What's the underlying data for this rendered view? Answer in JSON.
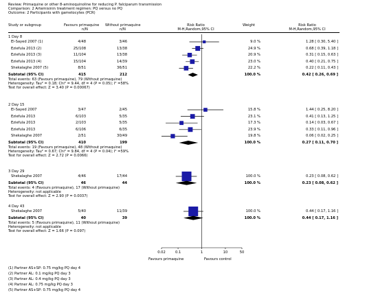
{
  "header": {
    "review": "Review: Primaquine or other 8-aminoquinoline for reducing P. falciparum transmission",
    "comparison": "Comparison: 2 Artemisinin treatment regimen: PQ versus no PQ",
    "outcome": "Outcome: 2 Participants with gametocytes (PCR)"
  },
  "columns": {
    "study": "Study or subgroup",
    "favours_pq": "Favours primaquine",
    "without_pq": "Without primaquine",
    "n_over_n": "n/N",
    "rr_title": "Risk Ratio",
    "rr_method": "M-H,Random,95% CI",
    "weight": "Weight"
  },
  "axis": {
    "ticks": [
      "0.02",
      "0.1",
      "1",
      "10",
      "50"
    ],
    "left_label": "Favours primaquine",
    "right_label": "Favours control"
  },
  "footnotes": [
    "(1) Partner AS+SP: 0.75 mg/kg PQ day 4",
    "(2) Partner AL: 0.1 mg/kg PQ day 3",
    "(3) Partner AL: 0.4 mg/kg PQ day 3",
    "(4) Partner AL: 0.75 mg/kg PQ day 3",
    "(5) Partner AS+SP: 0.75 mg/kg PQ day 4"
  ],
  "chart_data": {
    "type": "forest",
    "scale": "log",
    "xlim": [
      0.02,
      50
    ],
    "null_value": 1,
    "subgroups": [
      {
        "title": "1 Day 8",
        "studies": [
          {
            "name": "El-Sayed 2007 (1)",
            "pq": "4/48",
            "ctrl": "3/46",
            "weight": "9.0 %",
            "ci_text": "1.28 [ 0.30, 5.40 ]",
            "rr": 1.28,
            "lo": 0.3,
            "hi": 5.4,
            "w": 9.0
          },
          {
            "name": "Eziefula 2013 (2)",
            "pq": "25/108",
            "ctrl": "13/38",
            "weight": "24.9 %",
            "ci_text": "0.68 [ 0.39, 1.18 ]",
            "rr": 0.68,
            "lo": 0.39,
            "hi": 1.18,
            "w": 24.9
          },
          {
            "name": "Eziefula 2013 (3)",
            "pq": "11/104",
            "ctrl": "13/38",
            "weight": "20.9 %",
            "ci_text": "0.31 [ 0.15, 0.63 ]",
            "rr": 0.31,
            "lo": 0.15,
            "hi": 0.63,
            "w": 20.9
          },
          {
            "name": "Eziefula 2013 (4)",
            "pq": "15/104",
            "ctrl": "14/39",
            "weight": "23.0 %",
            "ci_text": "0.40 [ 0.21, 0.75 ]",
            "rr": 0.4,
            "lo": 0.21,
            "hi": 0.75,
            "w": 23.0
          },
          {
            "name": "Shekalaghe 2007 (5)",
            "pq": "8/51",
            "ctrl": "36/51",
            "weight": "22.2 %",
            "ci_text": "0.22 [ 0.11, 0.43 ]",
            "rr": 0.22,
            "lo": 0.11,
            "hi": 0.43,
            "w": 22.2
          }
        ],
        "subtotal": {
          "label": "Subtotal (95% CI)",
          "pq_n": "415",
          "ctrl_n": "212",
          "weight": "100.0 %",
          "ci_text": "0.42 [ 0.26, 0.69 ]",
          "rr": 0.42,
          "lo": 0.26,
          "hi": 0.69
        },
        "stats": [
          "Total events: 63 (Favours primaquine), 79 (Without primaquine)",
          "Heterogeneity: Tau² = 0.18; Chi² = 9.44, df = 4 (P = 0.05); I² =58%",
          "Test for overall effect: Z = 3.40 (P = 0.00067)"
        ]
      },
      {
        "title": "2 Day 15",
        "studies": [
          {
            "name": "El-Sayed 2007",
            "pq": "3/47",
            "ctrl": "2/45",
            "weight": "15.8 %",
            "ci_text": "1.44 [ 0.25, 8.20 ]",
            "rr": 1.44,
            "lo": 0.25,
            "hi": 8.2,
            "w": 15.8
          },
          {
            "name": "Eziefula 2013",
            "pq": "6/103",
            "ctrl": "5/35",
            "weight": "23.1 %",
            "ci_text": "0.41 [ 0.13, 1.25 ]",
            "rr": 0.41,
            "lo": 0.13,
            "hi": 1.25,
            "w": 23.1
          },
          {
            "name": "Eziefula 2013",
            "pq": "2/103",
            "ctrl": "5/35",
            "weight": "17.3 %",
            "ci_text": "0.14 [ 0.03, 0.67 ]",
            "rr": 0.14,
            "lo": 0.03,
            "hi": 0.67,
            "w": 17.3
          },
          {
            "name": "Eziefula 2013",
            "pq": "6/106",
            "ctrl": "6/35",
            "weight": "23.9 %",
            "ci_text": "0.33 [ 0.11, 0.96 ]",
            "rr": 0.33,
            "lo": 0.11,
            "hi": 0.96,
            "w": 23.9
          },
          {
            "name": "Shekalaghe 2007",
            "pq": "2/51",
            "ctrl": "30/49",
            "weight": "19.8 %",
            "ci_text": "0.06 [ 0.02, 0.25 ]",
            "rr": 0.06,
            "lo": 0.02,
            "hi": 0.25,
            "w": 19.8
          }
        ],
        "subtotal": {
          "label": "Subtotal (95% CI)",
          "pq_n": "410",
          "ctrl_n": "199",
          "weight": "100.0 %",
          "ci_text": "0.27 [ 0.11, 0.70 ]",
          "rr": 0.27,
          "lo": 0.11,
          "hi": 0.7
        },
        "stats": [
          "Total events: 19 (Favours primaquine), 48 (Without primaquine)",
          "Heterogeneity: Tau² = 0.67; Chi² = 9.84, df = 4 (P = 0.04); I² =59%",
          "Test for overall effect: Z = 2.72 (P = 0.0066)"
        ]
      },
      {
        "title": "3 Day 29",
        "studies": [
          {
            "name": "Shekalaghe 2007",
            "pq": "4/46",
            "ctrl": "17/44",
            "weight": "100.0 %",
            "ci_text": "0.23 [ 0.08, 0.62 ]",
            "rr": 0.23,
            "lo": 0.08,
            "hi": 0.62,
            "w": 100.0
          }
        ],
        "subtotal": {
          "label": "Subtotal (95% CI)",
          "pq_n": "46",
          "ctrl_n": "44",
          "weight": "100.0 %",
          "ci_text": "0.23 [ 0.08, 0.62 ]",
          "rr": 0.23,
          "lo": 0.08,
          "hi": 0.62
        },
        "stats": [
          "Total events: 4 (Favours primaquine), 17 (Without primaquine)",
          "Heterogeneity: not applicable",
          "Test for overall effect: Z = 2.90 (P = 0.0037)"
        ]
      },
      {
        "title": "4 Day 43",
        "studies": [
          {
            "name": "Shekalaghe 2007",
            "pq": "5/40",
            "ctrl": "11/39",
            "weight": "100.0 %",
            "ci_text": "0.44 [ 0.17, 1.16 ]",
            "rr": 0.44,
            "lo": 0.17,
            "hi": 1.16,
            "w": 100.0
          }
        ],
        "subtotal": {
          "label": "Subtotal (95% CI)",
          "pq_n": "40",
          "ctrl_n": "39",
          "weight": "100.0 %",
          "ci_text": "0.44 [ 0.17, 1.16 ]",
          "rr": 0.44,
          "lo": 0.17,
          "hi": 1.16
        },
        "stats": [
          "Total events: 5 (Favours primaquine), 11 (Without primaquine)",
          "Heterogeneity: not applicable",
          "Test for overall effect: Z = 1.66 (P = 0.097)"
        ]
      }
    ]
  }
}
